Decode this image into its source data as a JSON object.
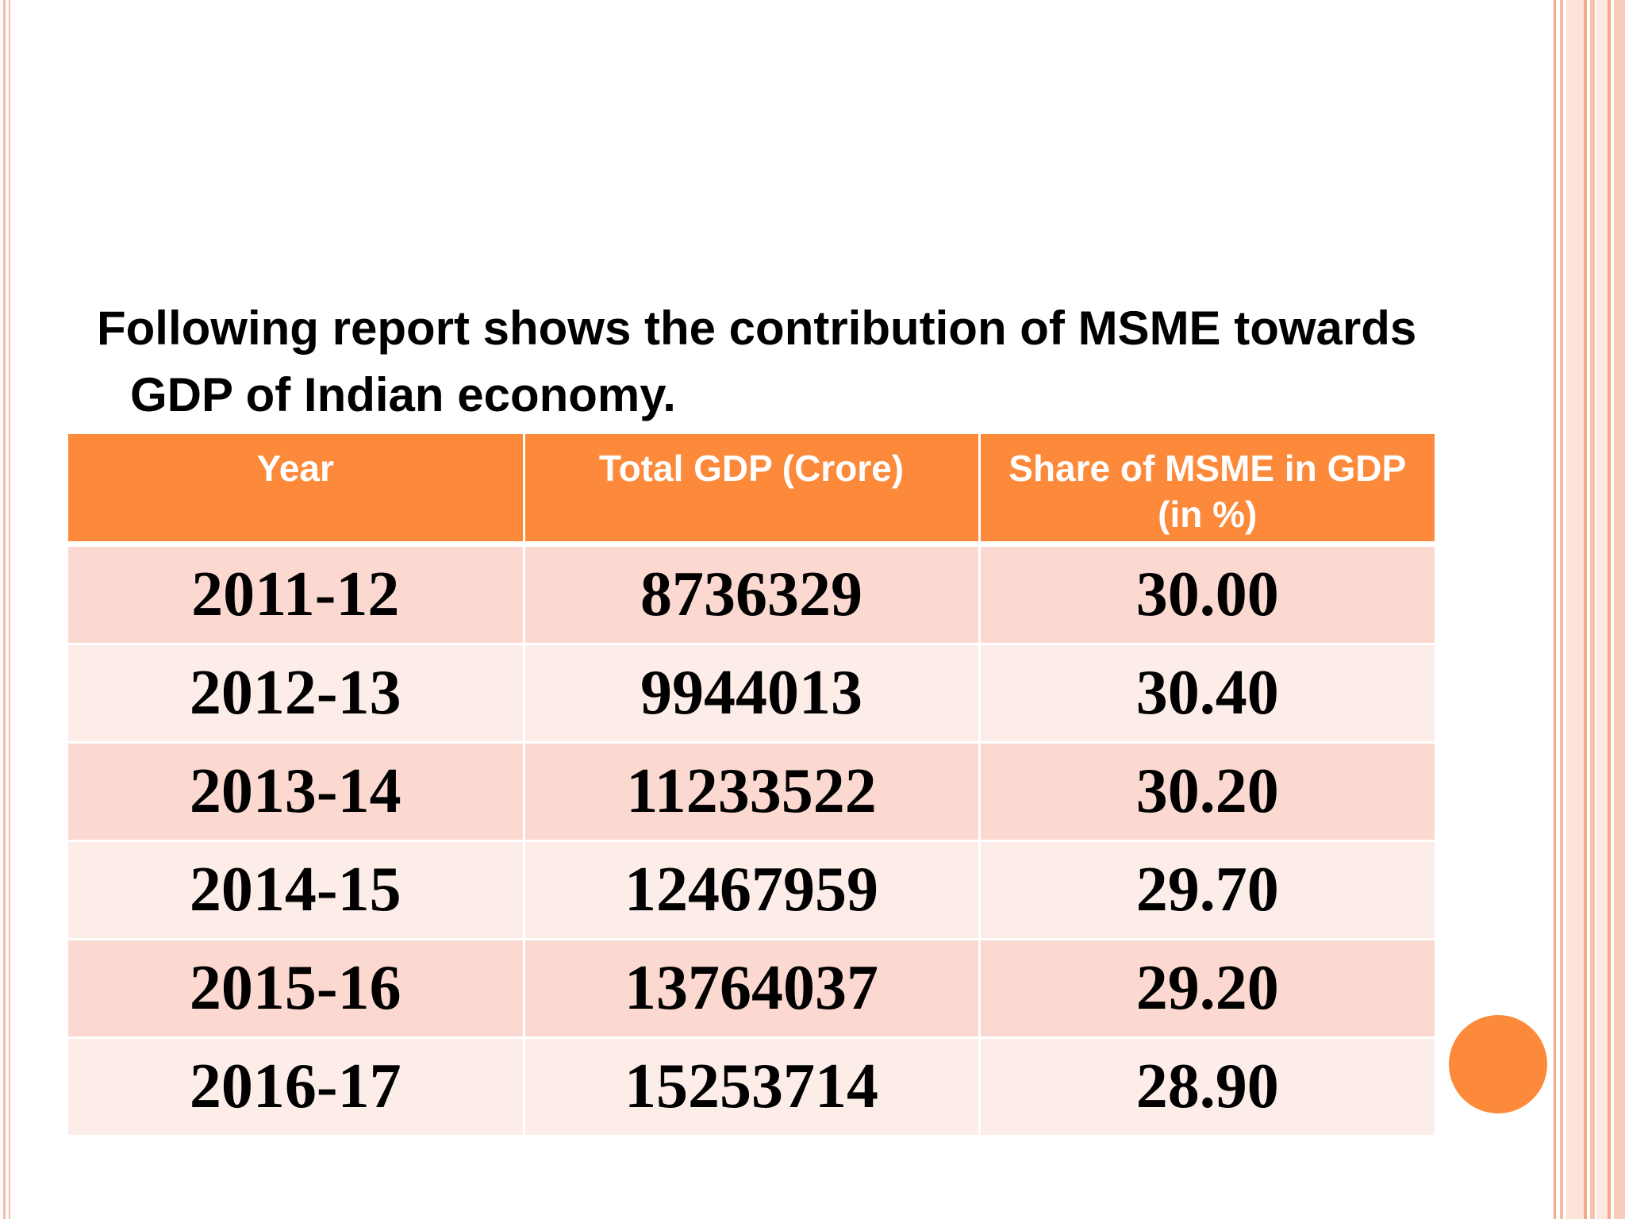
{
  "heading": "Following report shows the contribution of MSME towards GDP of Indian economy.",
  "table": {
    "headers": [
      "Year",
      "Total GDP (Crore)",
      "Share of MSME in GDP (in %)"
    ],
    "rows": [
      [
        "2011-12",
        "8736329",
        "30.00"
      ],
      [
        "2012-13",
        "9944013",
        "30.40"
      ],
      [
        "2013-14",
        "11233522",
        "30.20"
      ],
      [
        "2014-15",
        "12467959",
        "29.70"
      ],
      [
        "2015-16",
        "13764037",
        "29.20"
      ],
      [
        "2016-17",
        "15253714",
        "28.90"
      ]
    ]
  },
  "colors": {
    "accent": "#fd893a",
    "row_odd": "#fcd9d0",
    "row_even": "#fdede8",
    "border_decor": "#f6b9a3"
  }
}
